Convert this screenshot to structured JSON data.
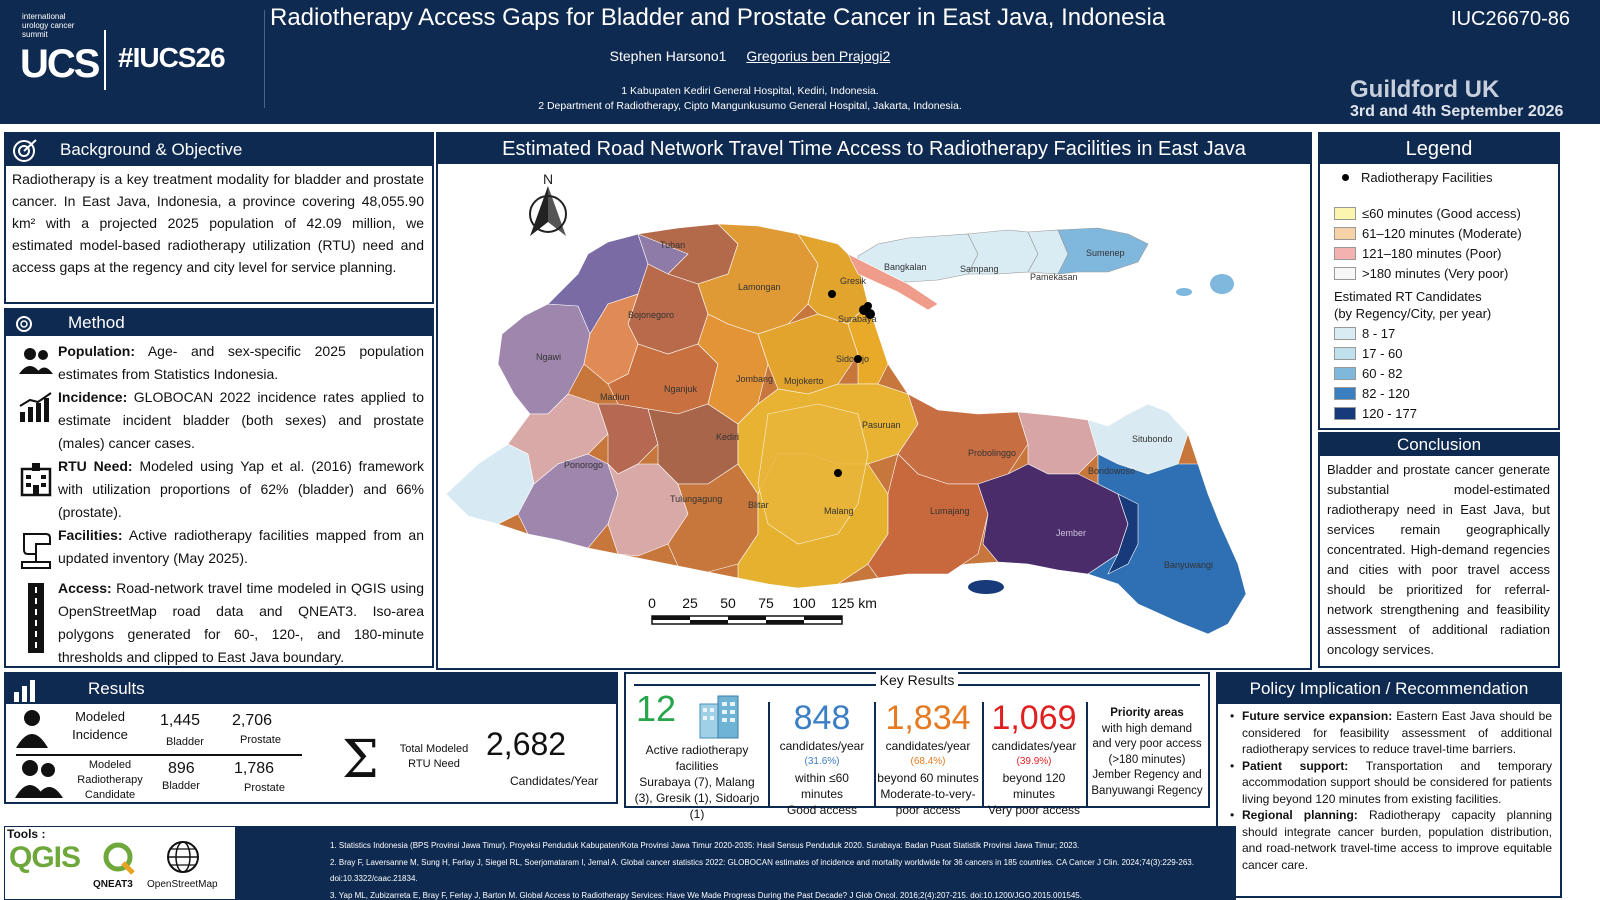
{
  "header": {
    "logo_small": "international urology cancer summit",
    "logo_ucs": "UCS",
    "hashtag": "#IUCS26",
    "title": "Radiotherapy Access Gaps for Bladder and Prostate Cancer in East Java, Indonesia",
    "author1": "Stephen Harsono1",
    "author2": "Gregorius ben Prajogi2",
    "affiliation1": "1 Kabupaten Kediri General Hospital, Kediri, Indonesia.",
    "affiliation2": "2 Department of Radiotherapy, Cipto Mangunkusumo General Hospital, Jakarta, Indonesia.",
    "abstract_id": "IUC26670-86",
    "venue_city": "Guildford UK",
    "venue_dates": "3rd and 4th September 2026"
  },
  "background": {
    "heading": "Background & Objective",
    "text": "Radiotherapy is a key treatment modality for bladder and prostate cancer. In East Java, Indonesia, a province covering 48,055.90 km² with a projected 2025 population of 42.09 million, we estimated model-based radiotherapy utilization (RTU) need and access gaps at the regency and city level for service planning."
  },
  "method": {
    "heading": "Method",
    "items": [
      {
        "icon": "population-icon",
        "label": "Population:",
        "text": " Age- and sex-specific 2025 population estimates from Statistics Indonesia."
      },
      {
        "icon": "chart-trend-icon",
        "label": "Incidence:",
        "text": " GLOBOCAN 2022 incidence rates applied to estimate incident bladder (both sexes) and prostate (males) cancer cases."
      },
      {
        "icon": "hospital-icon",
        "label": "RTU Need:",
        "text": " Modeled using Yap et al. (2016) framework with utilization proportions of 62% (bladder) and 66% (prostate)."
      },
      {
        "icon": "linac-icon",
        "label": "Facilities:",
        "text": " Active radiotherapy facilities mapped from an updated inventory (May 2025)."
      },
      {
        "icon": "road-icon",
        "label": "Access:",
        "text": " Road-network travel time modeled in QGIS using OpenStreetMap road data and QNEAT3. Iso-area polygons generated for 60-, 120-, and 180-minute thresholds and clipped to East Java boundary."
      }
    ]
  },
  "map": {
    "title": "Estimated Road Network Travel Time Access to Radiotherapy Facilities in East Java",
    "north": "N",
    "scale_ticks": [
      "0",
      "25",
      "50",
      "75",
      "100",
      "125 km"
    ],
    "regions": [
      "Tuban",
      "Gresik",
      "Lamongan",
      "Bojonegoro",
      "Surabaya",
      "Ngawi",
      "Sidoarjo",
      "Mojokerto",
      "Jombang",
      "Nganjuk",
      "Madiun",
      "Kediri",
      "Pasuruan",
      "Probolinggo",
      "Situbondo",
      "Bondowoso",
      "Ponorogo",
      "Tulungagung",
      "Blitar",
      "Malang",
      "Lumajang",
      "Jember",
      "Banyuwangi",
      "Bangkalan",
      "Sampang",
      "Pamekasan",
      "Sumenep"
    ]
  },
  "legend": {
    "title": "Legend",
    "facilities_label": "Radiotherapy Facilities",
    "access": [
      {
        "label": "≤60 minutes (Good access)",
        "color": "#fbf5b0"
      },
      {
        "label": "61–120 minutes (Moderate)",
        "color": "#f7d2a6"
      },
      {
        "label": "121–180 minutes (Poor)",
        "color": "#f3b2b0"
      },
      {
        "label": ">180 minutes (Very poor)",
        "color": "#f7f7f7"
      }
    ],
    "candidates_title_1": "Estimated RT Candidates",
    "candidates_title_2": "(by Regency/City, per year)",
    "candidates": [
      {
        "label": "8 - 17",
        "color": "#d9ecf4"
      },
      {
        "label": "17 - 60",
        "color": "#bfe1ee"
      },
      {
        "label": "60 - 82",
        "color": "#7fb7dd"
      },
      {
        "label": "82 - 120",
        "color": "#3a7fc0"
      },
      {
        "label": "120 - 177",
        "color": "#173a7a"
      }
    ]
  },
  "conclusion": {
    "heading": "Conclusion",
    "text": "Bladder and prostate cancer generate substantial model-estimated radiotherapy need in East Java, but services remain geographically concentrated. High-demand regencies and cities with poor travel access should be prioritized for referral-network strengthening and feasibility assessment of additional radiation oncology services."
  },
  "results": {
    "heading": "Results",
    "row1_label": "Modeled Incidence",
    "row1_bladder": "1,445",
    "row1_prostate": "2,706",
    "row2_label": "Modeled Radiotherapy Candidate",
    "row2_bladder": "896",
    "row2_prostate": "1,786",
    "bladder": "Bladder",
    "prostate": "Prostate",
    "sigma": "Σ",
    "total_label": "Total Modeled RTU Need",
    "total_value": "2,682",
    "total_unit": "Candidates/Year"
  },
  "key_results": {
    "heading": "Key Results",
    "facilities_count": "12",
    "facilities_label": "Active radiotherapy facilities",
    "facilities_detail": "Surabaya (7), Malang (3), Gresik (1), Sidoarjo (1)",
    "good": {
      "value": "848",
      "unit": "candidates/year",
      "pct": "(31.6%)",
      "desc1": "within ≤60",
      "desc2": "minutes",
      "desc3": "Good access",
      "color": "#3d7fc4"
    },
    "moderate": {
      "value": "1,834",
      "unit": "candidates/year",
      "pct": "(68.4%)",
      "desc1": "beyond 60 minutes",
      "desc2": "Moderate-to-very-",
      "desc3": "poor access",
      "color": "#e67a22"
    },
    "poor": {
      "value": "1,069",
      "unit": "candidates/year",
      "pct": "(39.9%)",
      "desc1": "beyond 120",
      "desc2": "minutes",
      "desc3": "Very poor access",
      "color": "#e02020"
    },
    "priority_title": "Priority areas",
    "priority_text1": "with high demand",
    "priority_text2": "and very poor access",
    "priority_text3": "(>180 minutes)",
    "priority_text4": "Jember Regency and",
    "priority_text5": "Banyuwangi Regency"
  },
  "policy": {
    "heading": "Policy Implication / Recommendation",
    "items": [
      {
        "label": "Future service expansion:",
        "text": " Eastern East Java should be considered for feasibility assessment of additional radiotherapy services to reduce travel-time barriers."
      },
      {
        "label": "Patient support:",
        "text": " Transportation and temporary accommodation support should be considered for patients living beyond 120 minutes from existing facilities."
      },
      {
        "label": "Regional planning:",
        "text": " Radiotherapy capacity planning should integrate cancer burden, population distribution, and road-network travel-time access to improve equitable cancer care."
      }
    ]
  },
  "tools": {
    "heading": "Tools :",
    "qgis": "QGIS",
    "qneat": "QNEAT3",
    "osm": "OpenStreetMap"
  },
  "references": [
    "1. Statistics Indonesia (BPS Provinsi Jawa Timur). Proyeksi Penduduk Kabupaten/Kota Provinsi Jawa Timur 2020-2035: Hasil Sensus Penduduk 2020. Surabaya: Badan Pusat Statistik Provinsi Jawa Timur; 2023.",
    "2. Bray F, Laversanne M, Sung H, Ferlay J, Siegel RL, Soerjomataram I, Jemal A. Global cancer statistics 2022: GLOBOCAN estimates of incidence and mortality worldwide for 36 cancers in 185 countries. CA Cancer J Clin. 2024;74(3):229-263.",
    "doi:10.3322/caac.21834.",
    "3. Yap ML, Zubizarreta E, Bray F, Ferlay J, Barton M. Global Access to Radiotherapy Services: Have We Made Progress During the Past Decade? J Glob Oncol. 2016;2(4):207-215. doi:10.1200/JGO.2015.001545."
  ]
}
